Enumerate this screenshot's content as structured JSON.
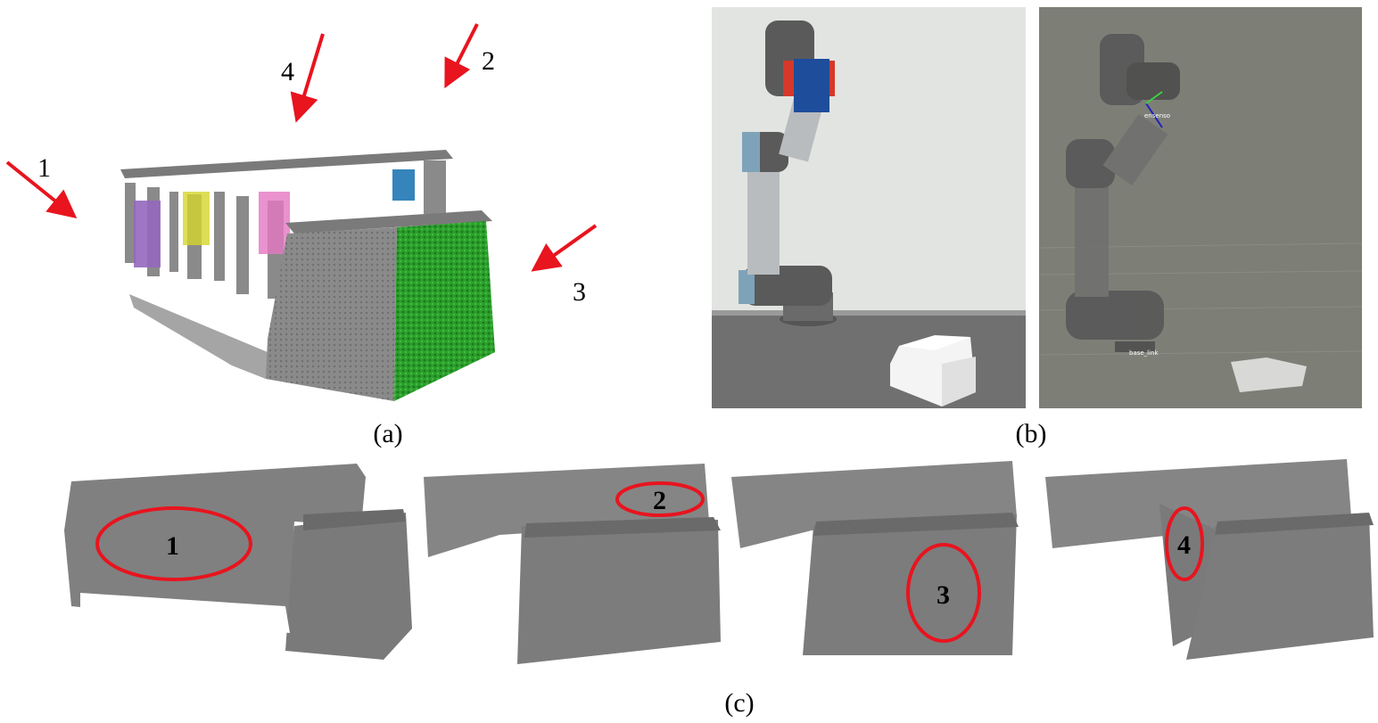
{
  "panel_a": {
    "caption": "(a)",
    "arrows": [
      {
        "label": "1"
      },
      {
        "label": "2"
      },
      {
        "label": "3"
      },
      {
        "label": "4"
      }
    ]
  },
  "panel_b": {
    "caption": "(b)",
    "sim_labels": {
      "sensor": "ensenso",
      "base": "base_link"
    }
  },
  "panel_c": {
    "caption": "(c)",
    "views": [
      {
        "region": "1"
      },
      {
        "region": "2"
      },
      {
        "region": "3"
      },
      {
        "region": "4"
      }
    ]
  },
  "colors": {
    "cloud_gray": "#808080",
    "arrow_red": "#e8141e",
    "segment_green": "#2ca02c",
    "segment_purple": "#9467bd",
    "segment_yellow": "#d6d62c",
    "segment_pink": "#e377c2",
    "segment_blue": "#1f77b4",
    "sim_bg": "#7d7f77"
  }
}
